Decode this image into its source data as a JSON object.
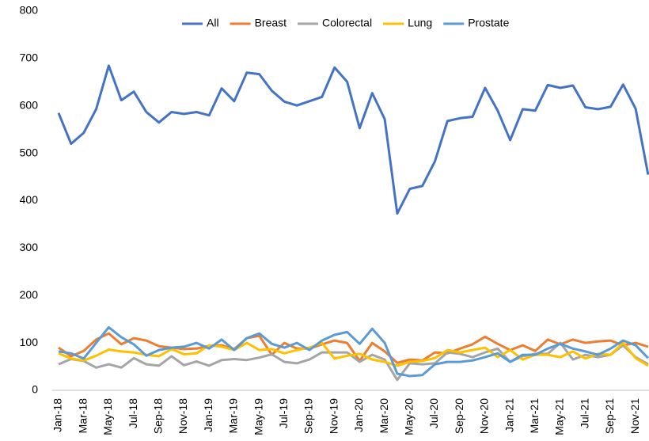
{
  "chart_data": {
    "type": "line",
    "categories": [
      "Jan-18",
      null,
      "Mar-18",
      null,
      "May-18",
      null,
      "Jul-18",
      null,
      "Sep-18",
      null,
      "Nov-18",
      null,
      "Jan-19",
      null,
      "Mar-19",
      null,
      "May-19",
      null,
      "Jul-19",
      null,
      "Sep-19",
      null,
      "Nov-19",
      null,
      "Jan-20",
      null,
      "Mar-20",
      null,
      "May-20",
      null,
      "Jul-20",
      null,
      "Sep-20",
      null,
      "Nov-20",
      null,
      "Jan-21",
      null,
      "Mar-21",
      null,
      "May-21",
      null,
      "Jul-21",
      null,
      "Sep-21",
      null,
      "Nov-21",
      null
    ],
    "series": [
      {
        "name": "All",
        "color": "#4472c4",
        "values": [
          585,
          520,
          543,
          593,
          685,
          612,
          630,
          587,
          565,
          587,
          583,
          587,
          580,
          637,
          610,
          670,
          667,
          632,
          609,
          601,
          610,
          619,
          681,
          651,
          553,
          627,
          572,
          373,
          425,
          431,
          483,
          568,
          574,
          577,
          638,
          590,
          528,
          593,
          590,
          644,
          638,
          643,
          597,
          593,
          598,
          645,
          594,
          455
        ]
      },
      {
        "name": "Breast",
        "color": "#ed7d31",
        "values": [
          90,
          72,
          83,
          107,
          120,
          97,
          110,
          105,
          93,
          90,
          87,
          88,
          94,
          95,
          87,
          110,
          115,
          75,
          100,
          88,
          88,
          97,
          105,
          100,
          62,
          100,
          82,
          58,
          65,
          63,
          80,
          78,
          88,
          97,
          113,
          98,
          85,
          95,
          83,
          107,
          97,
          107,
          100,
          103,
          105,
          95,
          100,
          92
        ]
      },
      {
        "name": "Colorectal",
        "color": "#a5a5a5",
        "values": [
          55,
          66,
          62,
          48,
          55,
          48,
          68,
          55,
          52,
          72,
          53,
          61,
          52,
          64,
          66,
          64,
          69,
          76,
          60,
          57,
          65,
          80,
          80,
          80,
          60,
          75,
          65,
          22,
          57,
          55,
          57,
          80,
          77,
          70,
          80,
          88,
          60,
          72,
          77,
          77,
          100,
          65,
          75,
          70,
          75,
          95,
          70,
          55
        ]
      },
      {
        "name": "Lung",
        "color": "#ffc000",
        "values": [
          78,
          67,
          63,
          73,
          86,
          82,
          80,
          75,
          72,
          87,
          76,
          78,
          95,
          92,
          85,
          100,
          85,
          87,
          78,
          85,
          90,
          100,
          67,
          73,
          77,
          65,
          60,
          52,
          60,
          62,
          68,
          85,
          80,
          85,
          90,
          70,
          85,
          65,
          75,
          75,
          70,
          82,
          67,
          77,
          75,
          100,
          68,
          52
        ]
      },
      {
        "name": "Prostate",
        "color": "#5b9bd5",
        "values": [
          82,
          78,
          67,
          100,
          133,
          112,
          97,
          73,
          85,
          90,
          92,
          100,
          88,
          107,
          85,
          110,
          120,
          98,
          90,
          100,
          85,
          105,
          117,
          123,
          98,
          130,
          100,
          35,
          30,
          32,
          55,
          60,
          60,
          63,
          70,
          78,
          60,
          75,
          75,
          88,
          98,
          88,
          82,
          75,
          88,
          105,
          95,
          68
        ]
      }
    ],
    "ylim": [
      0,
      800
    ],
    "yticks": [
      0,
      100,
      200,
      300,
      400,
      500,
      600,
      700,
      800
    ],
    "grid": false,
    "legend": "top"
  }
}
